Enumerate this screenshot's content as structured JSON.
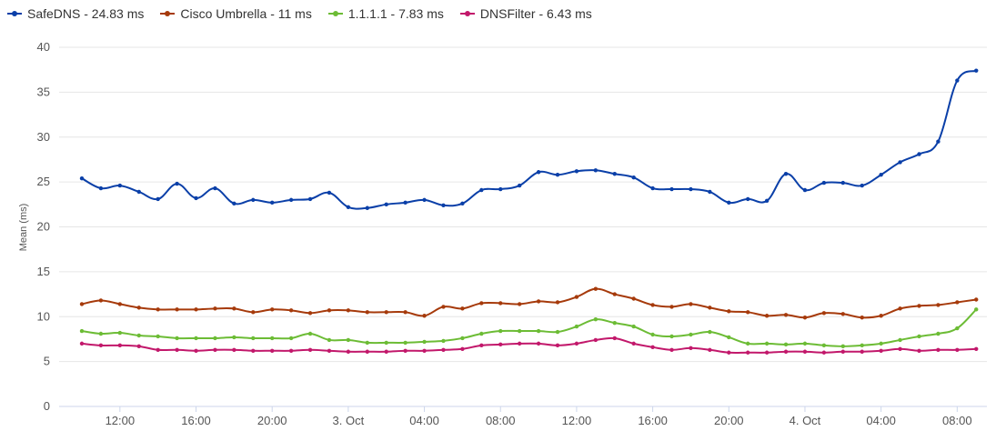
{
  "chart_data": {
    "type": "line",
    "ylabel": "Mean (ms)",
    "ylim": [
      0,
      40
    ],
    "yticks": [
      0,
      5,
      10,
      15,
      20,
      25,
      30,
      35,
      40
    ],
    "xticks": [
      "12:00",
      "16:00",
      "20:00",
      "3. Oct",
      "04:00",
      "08:00",
      "12:00",
      "16:00",
      "20:00",
      "4. Oct",
      "04:00",
      "08:00"
    ],
    "x_hours_start": 10,
    "x_hours_step": 1,
    "grid": "horizontal",
    "legend": "top-left",
    "series": [
      {
        "name": "SafeDNS - 24.83 ms",
        "color": "#0a3fa8",
        "values": [
          25.4,
          24.3,
          24.6,
          23.9,
          23.1,
          24.8,
          23.2,
          24.3,
          22.6,
          23.0,
          22.7,
          23.0,
          23.1,
          23.8,
          22.2,
          22.1,
          22.5,
          22.7,
          23.0,
          22.4,
          22.6,
          24.1,
          24.2,
          24.6,
          26.1,
          25.8,
          26.2,
          26.3,
          25.9,
          25.5,
          24.3,
          24.2,
          24.2,
          23.9,
          22.7,
          23.1,
          22.9,
          25.9,
          24.1,
          24.9,
          24.9,
          24.6,
          25.8,
          27.2,
          28.1,
          29.5,
          36.3,
          37.4
        ]
      },
      {
        "name": "Cisco Umbrella - 11 ms",
        "color": "#a63a0b",
        "values": [
          11.4,
          11.8,
          11.4,
          11.0,
          10.8,
          10.8,
          10.8,
          10.9,
          10.9,
          10.5,
          10.8,
          10.7,
          10.4,
          10.7,
          10.7,
          10.5,
          10.5,
          10.5,
          10.1,
          11.1,
          10.9,
          11.5,
          11.5,
          11.4,
          11.7,
          11.6,
          12.2,
          13.1,
          12.5,
          12.0,
          11.3,
          11.1,
          11.4,
          11.0,
          10.6,
          10.5,
          10.1,
          10.2,
          9.9,
          10.4,
          10.3,
          9.9,
          10.1,
          10.9,
          11.2,
          11.3,
          11.6,
          11.9
        ]
      },
      {
        "name": "1.1.1.1 - 7.83 ms",
        "color": "#6cbc35",
        "values": [
          8.4,
          8.1,
          8.2,
          7.9,
          7.8,
          7.6,
          7.6,
          7.6,
          7.7,
          7.6,
          7.6,
          7.6,
          8.1,
          7.4,
          7.4,
          7.1,
          7.1,
          7.1,
          7.2,
          7.3,
          7.6,
          8.1,
          8.4,
          8.4,
          8.4,
          8.3,
          8.9,
          9.7,
          9.3,
          8.9,
          8.0,
          7.8,
          8.0,
          8.3,
          7.7,
          7.0,
          7.0,
          6.9,
          7.0,
          6.8,
          6.7,
          6.8,
          7.0,
          7.4,
          7.8,
          8.1,
          8.7,
          10.8
        ]
      },
      {
        "name": "DNSFilter - 6.43 ms",
        "color": "#c2186b",
        "values": [
          7.0,
          6.8,
          6.8,
          6.7,
          6.3,
          6.3,
          6.2,
          6.3,
          6.3,
          6.2,
          6.2,
          6.2,
          6.3,
          6.2,
          6.1,
          6.1,
          6.1,
          6.2,
          6.2,
          6.3,
          6.4,
          6.8,
          6.9,
          7.0,
          7.0,
          6.8,
          7.0,
          7.4,
          7.6,
          7.0,
          6.6,
          6.3,
          6.5,
          6.3,
          6.0,
          6.0,
          6.0,
          6.1,
          6.1,
          6.0,
          6.1,
          6.1,
          6.2,
          6.4,
          6.2,
          6.3,
          6.3,
          6.4
        ]
      }
    ]
  }
}
